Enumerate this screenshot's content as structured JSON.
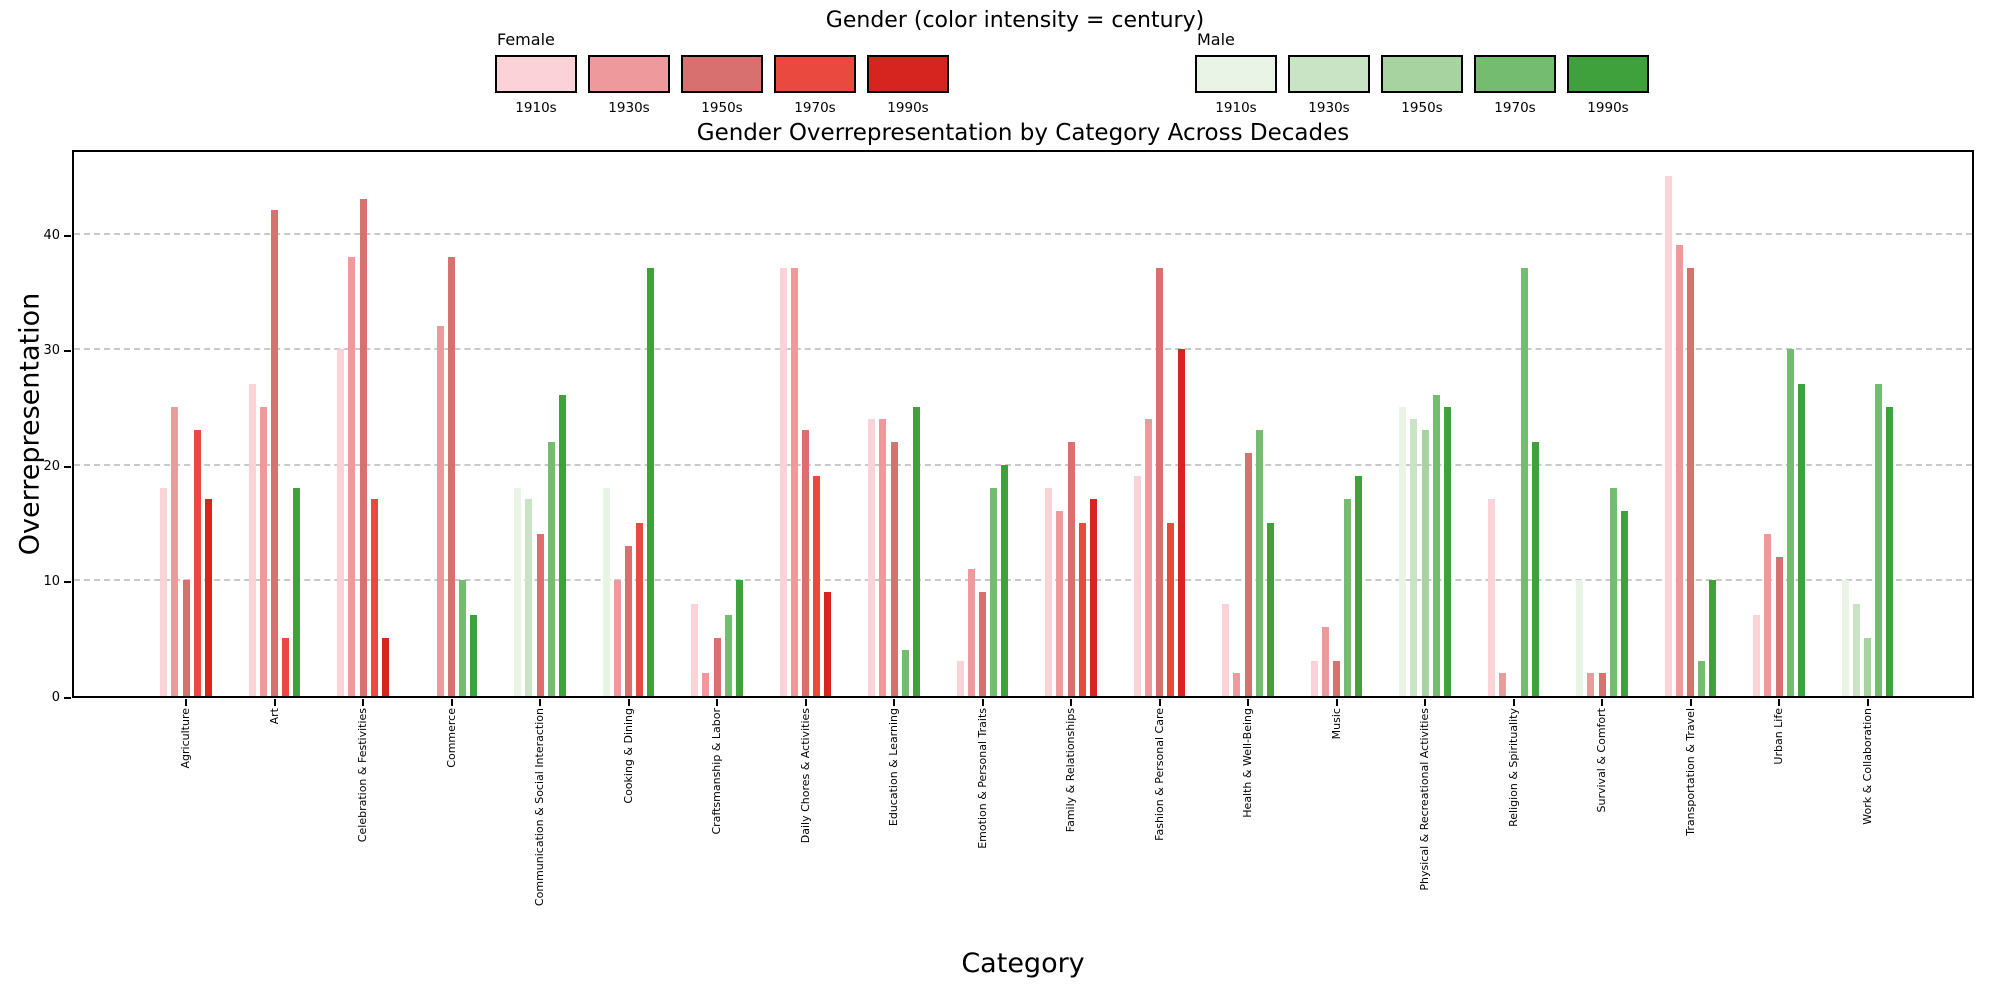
{
  "legend": {
    "title": "Gender (color intensity = century)",
    "female": {
      "label": "Female"
    },
    "male": {
      "label": "Male"
    }
  },
  "chart_data": {
    "type": "bar",
    "title": "Gender Overrepresentation by Category Across Decades",
    "xlabel": "Category",
    "ylabel": "Overrepresentation",
    "ylim": [
      0,
      47.4
    ],
    "yticks": [
      0,
      10,
      20,
      30,
      40
    ],
    "grid": "horizontal-dashed",
    "legend_position": "top",
    "decades": [
      "1910s",
      "1930s",
      "1950s",
      "1970s",
      "1990s"
    ],
    "female_colors": {
      "1910s": "#fbd2d8",
      "1930s": "#ee9a9c",
      "1950s": "#d97070",
      "1970s": "#e9493f",
      "1990s": "#d6251e"
    },
    "male_colors": {
      "1910s": "#e9f3e6",
      "1930s": "#c9e3c5",
      "1950s": "#a6d3a0",
      "1970s": "#74bd70",
      "1990s": "#3fa13c"
    },
    "series": [
      {
        "category": "Agriculture",
        "bars": [
          {
            "decade": "1910s",
            "gender": "female",
            "value": 18
          },
          {
            "decade": "1930s",
            "gender": "female",
            "value": 25
          },
          {
            "decade": "1950s",
            "gender": "female",
            "value": 10
          },
          {
            "decade": "1970s",
            "gender": "female",
            "value": 23
          },
          {
            "decade": "1990s",
            "gender": "female",
            "value": 17
          }
        ]
      },
      {
        "category": "Art",
        "bars": [
          {
            "decade": "1910s",
            "gender": "female",
            "value": 27
          },
          {
            "decade": "1930s",
            "gender": "female",
            "value": 25
          },
          {
            "decade": "1950s",
            "gender": "female",
            "value": 42
          },
          {
            "decade": "1970s",
            "gender": "female",
            "value": 5
          },
          {
            "decade": "1990s",
            "gender": "male",
            "value": 18
          }
        ]
      },
      {
        "category": "Celebration & Festivities",
        "bars": [
          {
            "decade": "1910s",
            "gender": "female",
            "value": 30
          },
          {
            "decade": "1930s",
            "gender": "female",
            "value": 38
          },
          {
            "decade": "1950s",
            "gender": "female",
            "value": 43
          },
          {
            "decade": "1970s",
            "gender": "female",
            "value": 17
          },
          {
            "decade": "1990s",
            "gender": "female",
            "value": 5
          }
        ]
      },
      {
        "category": "Commerce",
        "bars": [
          {
            "decade": "1930s",
            "gender": "female",
            "value": 32
          },
          {
            "decade": "1950s",
            "gender": "female",
            "value": 38
          },
          {
            "decade": "1970s",
            "gender": "male",
            "value": 10
          },
          {
            "decade": "1990s",
            "gender": "male",
            "value": 7
          }
        ]
      },
      {
        "category": "Communication & Social Interaction",
        "bars": [
          {
            "decade": "1910s",
            "gender": "male",
            "value": 18
          },
          {
            "decade": "1930s",
            "gender": "male",
            "value": 17
          },
          {
            "decade": "1950s",
            "gender": "female",
            "value": 14
          },
          {
            "decade": "1970s",
            "gender": "male",
            "value": 22
          },
          {
            "decade": "1990s",
            "gender": "male",
            "value": 26
          }
        ]
      },
      {
        "category": "Cooking & Dining",
        "bars": [
          {
            "decade": "1910s",
            "gender": "male",
            "value": 18
          },
          {
            "decade": "1930s",
            "gender": "female",
            "value": 10
          },
          {
            "decade": "1950s",
            "gender": "female",
            "value": 13
          },
          {
            "decade": "1970s",
            "gender": "female",
            "value": 15
          },
          {
            "decade": "1990s",
            "gender": "male",
            "value": 37
          }
        ]
      },
      {
        "category": "Craftsmanship & Labor",
        "bars": [
          {
            "decade": "1910s",
            "gender": "female",
            "value": 8
          },
          {
            "decade": "1930s",
            "gender": "female",
            "value": 2
          },
          {
            "decade": "1950s",
            "gender": "female",
            "value": 5
          },
          {
            "decade": "1970s",
            "gender": "male",
            "value": 7
          },
          {
            "decade": "1990s",
            "gender": "male",
            "value": 10
          }
        ]
      },
      {
        "category": "Daily Chores & Activities",
        "bars": [
          {
            "decade": "1910s",
            "gender": "female",
            "value": 37
          },
          {
            "decade": "1930s",
            "gender": "female",
            "value": 37
          },
          {
            "decade": "1950s",
            "gender": "female",
            "value": 23
          },
          {
            "decade": "1970s",
            "gender": "female",
            "value": 19
          },
          {
            "decade": "1990s",
            "gender": "female",
            "value": 9
          }
        ]
      },
      {
        "category": "Education & Learning",
        "bars": [
          {
            "decade": "1910s",
            "gender": "female",
            "value": 24
          },
          {
            "decade": "1930s",
            "gender": "female",
            "value": 24
          },
          {
            "decade": "1950s",
            "gender": "female",
            "value": 22
          },
          {
            "decade": "1970s",
            "gender": "male",
            "value": 4
          },
          {
            "decade": "1990s",
            "gender": "male",
            "value": 25
          }
        ]
      },
      {
        "category": "Emotion & Personal Traits",
        "bars": [
          {
            "decade": "1910s",
            "gender": "female",
            "value": 3
          },
          {
            "decade": "1930s",
            "gender": "female",
            "value": 11
          },
          {
            "decade": "1950s",
            "gender": "female",
            "value": 9
          },
          {
            "decade": "1970s",
            "gender": "male",
            "value": 18
          },
          {
            "decade": "1990s",
            "gender": "male",
            "value": 20
          }
        ]
      },
      {
        "category": "Family & Relationships",
        "bars": [
          {
            "decade": "1910s",
            "gender": "female",
            "value": 18
          },
          {
            "decade": "1930s",
            "gender": "female",
            "value": 16
          },
          {
            "decade": "1950s",
            "gender": "female",
            "value": 22
          },
          {
            "decade": "1970s",
            "gender": "female",
            "value": 15
          },
          {
            "decade": "1990s",
            "gender": "female",
            "value": 17
          }
        ]
      },
      {
        "category": "Fashion & Personal Care",
        "bars": [
          {
            "decade": "1910s",
            "gender": "female",
            "value": 19
          },
          {
            "decade": "1930s",
            "gender": "female",
            "value": 24
          },
          {
            "decade": "1950s",
            "gender": "female",
            "value": 37
          },
          {
            "decade": "1970s",
            "gender": "female",
            "value": 15
          },
          {
            "decade": "1990s",
            "gender": "female",
            "value": 30
          }
        ]
      },
      {
        "category": "Health & Well-Being",
        "bars": [
          {
            "decade": "1910s",
            "gender": "female",
            "value": 8
          },
          {
            "decade": "1930s",
            "gender": "female",
            "value": 2
          },
          {
            "decade": "1950s",
            "gender": "female",
            "value": 21
          },
          {
            "decade": "1970s",
            "gender": "male",
            "value": 23
          },
          {
            "decade": "1990s",
            "gender": "male",
            "value": 15
          }
        ]
      },
      {
        "category": "Music",
        "bars": [
          {
            "decade": "1910s",
            "gender": "female",
            "value": 3
          },
          {
            "decade": "1930s",
            "gender": "female",
            "value": 6
          },
          {
            "decade": "1950s",
            "gender": "female",
            "value": 3
          },
          {
            "decade": "1970s",
            "gender": "male",
            "value": 17
          },
          {
            "decade": "1990s",
            "gender": "male",
            "value": 19
          }
        ]
      },
      {
        "category": "Physical & Recreational Activities",
        "bars": [
          {
            "decade": "1910s",
            "gender": "male",
            "value": 25
          },
          {
            "decade": "1930s",
            "gender": "male",
            "value": 24
          },
          {
            "decade": "1950s",
            "gender": "male",
            "value": 23
          },
          {
            "decade": "1970s",
            "gender": "male",
            "value": 26
          },
          {
            "decade": "1990s",
            "gender": "male",
            "value": 25
          }
        ]
      },
      {
        "category": "Religion & Spirituality",
        "bars": [
          {
            "decade": "1910s",
            "gender": "female",
            "value": 17
          },
          {
            "decade": "1930s",
            "gender": "female",
            "value": 2
          },
          {
            "decade": "1970s",
            "gender": "male",
            "value": 37
          },
          {
            "decade": "1990s",
            "gender": "male",
            "value": 22
          }
        ]
      },
      {
        "category": "Survival & Comfort",
        "bars": [
          {
            "decade": "1910s",
            "gender": "male",
            "value": 10
          },
          {
            "decade": "1930s",
            "gender": "female",
            "value": 2
          },
          {
            "decade": "1950s",
            "gender": "female",
            "value": 2
          },
          {
            "decade": "1970s",
            "gender": "male",
            "value": 18
          },
          {
            "decade": "1990s",
            "gender": "male",
            "value": 16
          }
        ]
      },
      {
        "category": "Transportation & Travel",
        "bars": [
          {
            "decade": "1910s",
            "gender": "female",
            "value": 45
          },
          {
            "decade": "1930s",
            "gender": "female",
            "value": 39
          },
          {
            "decade": "1950s",
            "gender": "female",
            "value": 37
          },
          {
            "decade": "1970s",
            "gender": "male",
            "value": 3
          },
          {
            "decade": "1990s",
            "gender": "male",
            "value": 10
          }
        ]
      },
      {
        "category": "Urban Life",
        "bars": [
          {
            "decade": "1910s",
            "gender": "female",
            "value": 7
          },
          {
            "decade": "1930s",
            "gender": "female",
            "value": 14
          },
          {
            "decade": "1950s",
            "gender": "female",
            "value": 12
          },
          {
            "decade": "1970s",
            "gender": "male",
            "value": 30
          },
          {
            "decade": "1990s",
            "gender": "male",
            "value": 27
          }
        ]
      },
      {
        "category": "Work & Collaboration",
        "bars": [
          {
            "decade": "1910s",
            "gender": "male",
            "value": 10
          },
          {
            "decade": "1930s",
            "gender": "male",
            "value": 8
          },
          {
            "decade": "1950s",
            "gender": "male",
            "value": 5
          },
          {
            "decade": "1970s",
            "gender": "male",
            "value": 27
          },
          {
            "decade": "1990s",
            "gender": "male",
            "value": 25
          }
        ]
      }
    ]
  }
}
